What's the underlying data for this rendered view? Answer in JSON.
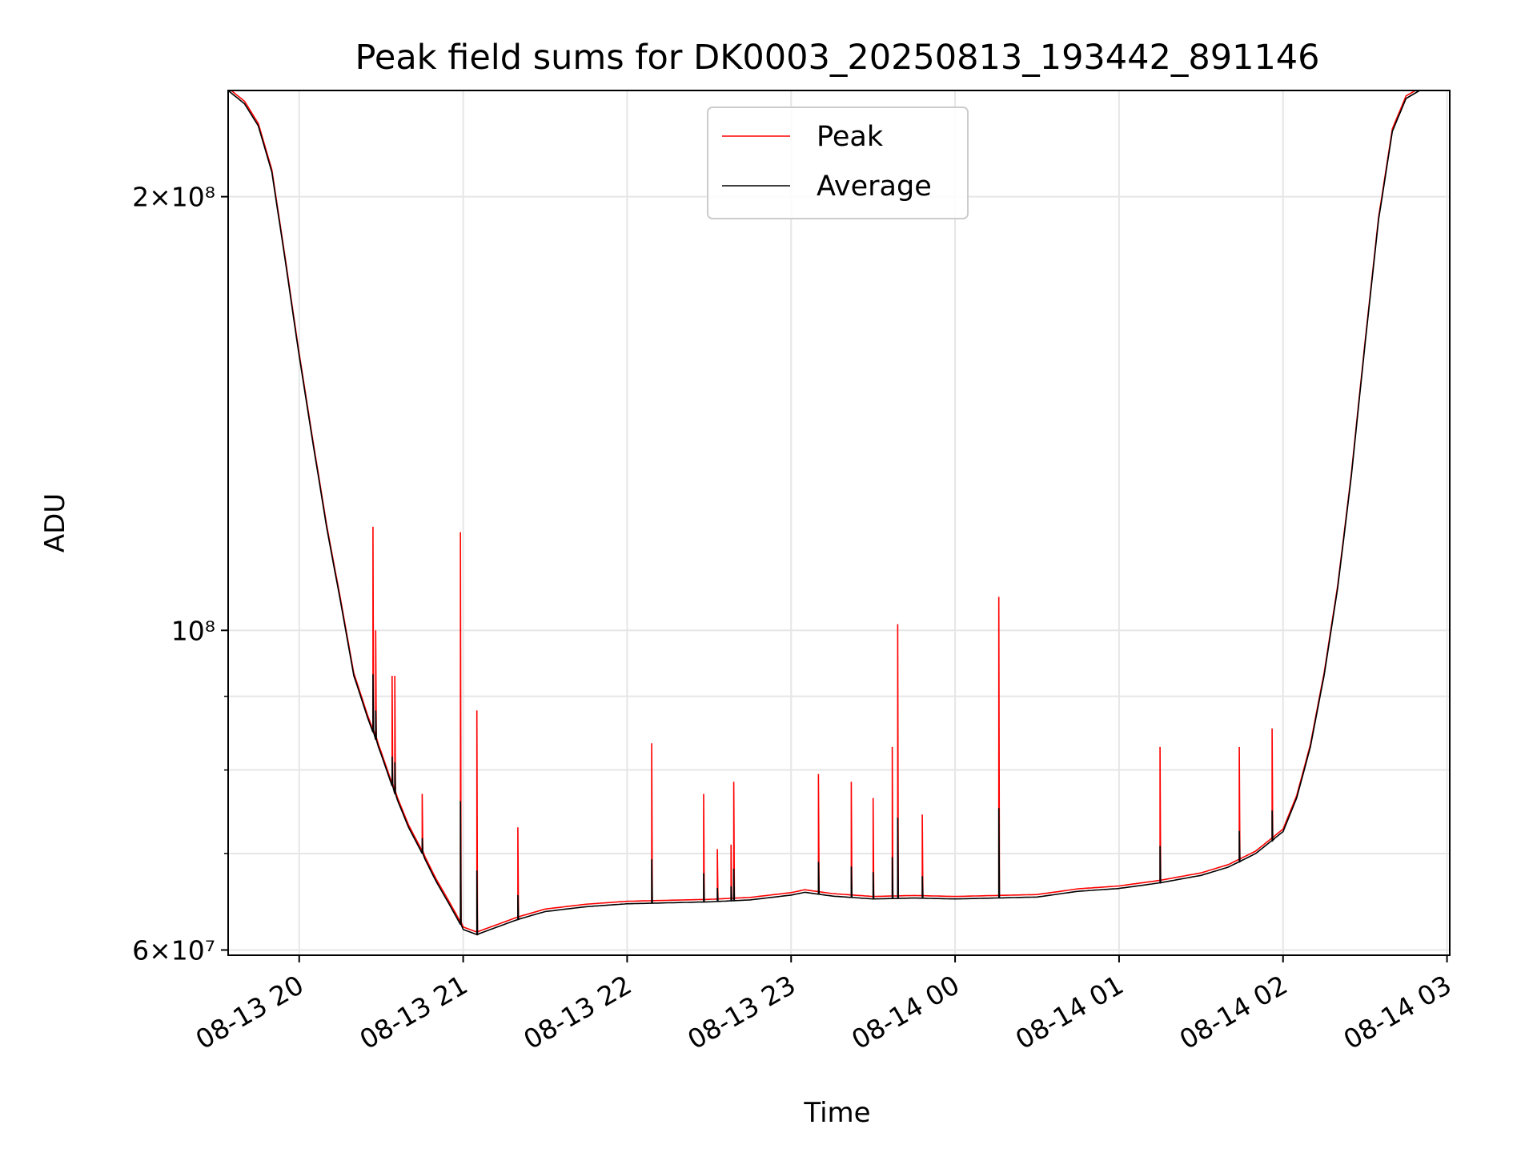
{
  "chart_data": {
    "type": "line",
    "title": "Peak field sums for DK0003_20250813_193442_891146",
    "xlabel": "Time",
    "ylabel": "ADU",
    "yscale": "log",
    "ylim": [
      59500000,
      237000000
    ],
    "xlim": [
      "2025-08-13 19:34",
      "2025-08-14 03:01"
    ],
    "grid": true,
    "legend_position": "upper center",
    "x_ticks": [
      "08-13 20",
      "08-13 21",
      "08-13 22",
      "08-13 23",
      "08-14 00",
      "08-14 01",
      "08-14 02",
      "08-14 03"
    ],
    "y_ticks": [
      {
        "value": 60000000,
        "label": "6×10⁷"
      },
      {
        "value": 100000000,
        "label": "10⁸"
      },
      {
        "value": 200000000,
        "label": "2×10⁸"
      }
    ],
    "series": [
      {
        "name": "Peak",
        "color": "#ff0000",
        "baseline_from": "Average",
        "spikes": [
          {
            "x": "2025-08-13 20:27",
            "y": 118000000
          },
          {
            "x": "2025-08-13 20:28",
            "y": 100000000
          },
          {
            "x": "2025-08-13 20:34",
            "y": 93000000
          },
          {
            "x": "2025-08-13 20:35",
            "y": 93000000
          },
          {
            "x": "2025-08-13 20:45",
            "y": 77000000
          },
          {
            "x": "2025-08-13 20:59",
            "y": 117000000
          },
          {
            "x": "2025-08-13 21:05",
            "y": 88000000
          },
          {
            "x": "2025-08-13 21:20",
            "y": 73000000
          },
          {
            "x": "2025-08-13 22:09",
            "y": 83500000
          },
          {
            "x": "2025-08-13 22:28",
            "y": 77000000
          },
          {
            "x": "2025-08-13 22:33",
            "y": 70500000
          },
          {
            "x": "2025-08-13 22:38",
            "y": 71000000
          },
          {
            "x": "2025-08-13 22:39",
            "y": 78500000
          },
          {
            "x": "2025-08-13 23:10",
            "y": 79500000
          },
          {
            "x": "2025-08-13 23:22",
            "y": 78500000
          },
          {
            "x": "2025-08-13 23:30",
            "y": 76500000
          },
          {
            "x": "2025-08-13 23:37",
            "y": 83000000
          },
          {
            "x": "2025-08-13 23:39",
            "y": 101000000
          },
          {
            "x": "2025-08-13 23:48",
            "y": 74500000
          },
          {
            "x": "2025-08-14 00:16",
            "y": 105500000
          },
          {
            "x": "2025-08-14 01:15",
            "y": 83000000
          },
          {
            "x": "2025-08-14 01:44",
            "y": 83000000
          },
          {
            "x": "2025-08-14 01:56",
            "y": 85500000
          }
        ]
      },
      {
        "name": "Average",
        "color": "#000000",
        "x": [
          "2025-08-13 19:34",
          "2025-08-13 19:40",
          "2025-08-13 19:45",
          "2025-08-13 19:50",
          "2025-08-13 19:55",
          "2025-08-13 20:00",
          "2025-08-13 20:05",
          "2025-08-13 20:10",
          "2025-08-13 20:15",
          "2025-08-13 20:20",
          "2025-08-13 20:25",
          "2025-08-13 20:30",
          "2025-08-13 20:35",
          "2025-08-13 20:40",
          "2025-08-13 20:45",
          "2025-08-13 20:50",
          "2025-08-13 20:55",
          "2025-08-13 21:00",
          "2025-08-13 21:05",
          "2025-08-13 21:10",
          "2025-08-13 21:20",
          "2025-08-13 21:30",
          "2025-08-13 21:45",
          "2025-08-13 22:00",
          "2025-08-13 22:15",
          "2025-08-13 22:30",
          "2025-08-13 22:45",
          "2025-08-13 23:00",
          "2025-08-13 23:05",
          "2025-08-13 23:15",
          "2025-08-13 23:30",
          "2025-08-13 23:45",
          "2025-08-14 00:00",
          "2025-08-14 00:15",
          "2025-08-14 00:30",
          "2025-08-14 00:45",
          "2025-08-14 01:00",
          "2025-08-14 01:15",
          "2025-08-14 01:30",
          "2025-08-14 01:40",
          "2025-08-14 01:50",
          "2025-08-14 02:00",
          "2025-08-14 02:05",
          "2025-08-14 02:10",
          "2025-08-14 02:15",
          "2025-08-14 02:20",
          "2025-08-14 02:25",
          "2025-08-14 02:30",
          "2025-08-14 02:35",
          "2025-08-14 02:40",
          "2025-08-14 02:45",
          "2025-08-14 02:50",
          "2025-08-14 03:01"
        ],
        "y": [
          237000000,
          232000000,
          224000000,
          208000000,
          180000000,
          155000000,
          135000000,
          118000000,
          105000000,
          93000000,
          87000000,
          82000000,
          77000000,
          73000000,
          70000000,
          67000000,
          64500000,
          62000000,
          61500000,
          62000000,
          63000000,
          63800000,
          64300000,
          64600000,
          64700000,
          64800000,
          65000000,
          65500000,
          65800000,
          65400000,
          65100000,
          65200000,
          65100000,
          65200000,
          65300000,
          65900000,
          66200000,
          66800000,
          67600000,
          68500000,
          70000000,
          72500000,
          76500000,
          83000000,
          93000000,
          107000000,
          128000000,
          158000000,
          193000000,
          222000000,
          234000000,
          237000000,
          237000000
        ]
      }
    ]
  }
}
